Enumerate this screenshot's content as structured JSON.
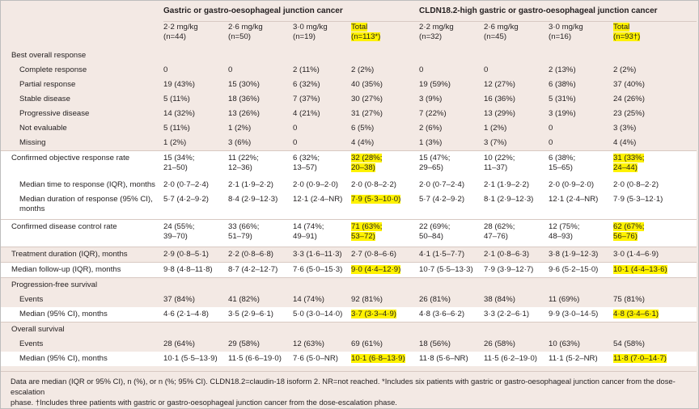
{
  "groups": {
    "g1": "Gastric or gastro-oesophageal junction cancer",
    "g2": "CLDN18.2-high gastric or gastro-oesophageal junction cancer"
  },
  "columns": [
    {
      "dose": "2·2 mg/kg",
      "n": "(n=44)"
    },
    {
      "dose": "2·6 mg/kg",
      "n": "(n=50)"
    },
    {
      "dose": "3·0 mg/kg",
      "n": "(n=19)"
    },
    {
      "dose": "Total",
      "n": "(n=113*)"
    },
    {
      "dose": "2·2 mg/kg",
      "n": "(n=32)"
    },
    {
      "dose": "2·6 mg/kg",
      "n": "(n=45)"
    },
    {
      "dose": "3·0 mg/kg",
      "n": "(n=16)"
    },
    {
      "dose": "Total",
      "n": "(n=93†)"
    }
  ],
  "rows": [
    {
      "label": "Best overall response",
      "kind": "group",
      "cells": []
    },
    {
      "label": "Complete response",
      "kind": "item",
      "cells": [
        "0",
        "0",
        "2 (11%)",
        "2 (2%)",
        "0",
        "0",
        "2 (13%)",
        "2 (2%)"
      ]
    },
    {
      "label": "Partial response",
      "kind": "item",
      "cells": [
        "19 (43%)",
        "15 (30%)",
        "6 (32%)",
        "40 (35%)",
        "19 (59%)",
        "12 (27%)",
        "6 (38%)",
        "37 (40%)"
      ]
    },
    {
      "label": "Stable disease",
      "kind": "item",
      "cells": [
        "5 (11%)",
        "18 (36%)",
        "7 (37%)",
        "30 (27%)",
        "3 (9%)",
        "16 (36%)",
        "5 (31%)",
        "24 (26%)"
      ]
    },
    {
      "label": "Progressive disease",
      "kind": "item",
      "cells": [
        "14 (32%)",
        "13 (26%)",
        "4 (21%)",
        "31 (27%)",
        "7 (22%)",
        "13 (29%)",
        "3 (19%)",
        "23 (25%)"
      ]
    },
    {
      "label": "Not evaluable",
      "kind": "item",
      "cells": [
        "5 (11%)",
        "1 (2%)",
        "0",
        "6 (5%)",
        "2 (6%)",
        "1 (2%)",
        "0",
        "3 (3%)"
      ]
    },
    {
      "label": "Missing",
      "kind": "item",
      "cells": [
        "1 (2%)",
        "3 (6%)",
        "0",
        "4 (4%)",
        "1 (3%)",
        "3 (7%)",
        "0",
        "4 (4%)"
      ]
    },
    {
      "label": "Confirmed objective response rate",
      "kind": "top",
      "cells": [
        "15 (34%;",
        "11 (22%;",
        "6 (32%;",
        "32 (28%;",
        "15 (47%;",
        "10 (22%;",
        "6 (38%;",
        "31 (33%;"
      ],
      "cells2": [
        "21–50)",
        "12–36)",
        "13–57)",
        "20–38)",
        "29–65)",
        "11–37)",
        "15–65)",
        "24–44)"
      ]
    },
    {
      "label": "Median time to response (IQR), months",
      "kind": "item",
      "cells": [
        "2·0 (0·7–2·4)",
        "2·1 (1·9–2·2)",
        "2·0 (0·9–2·0)",
        "2·0 (0·8–2·2)",
        "2·0 (0·7–2·4)",
        "2·1 (1·9–2·2)",
        "2·0 (0·9–2·0)",
        "2·0 (0·8–2·2)"
      ]
    },
    {
      "label": "Median duration of response (95% CI),",
      "label2": "months",
      "kind": "item2",
      "cells": [
        "5·7 (4·2–9·2)",
        "8·4 (2·9–12·3)",
        "12·1 (2·4–NR)",
        "7·9 (5·3–10·0)",
        "5·7 (4·2–9·2)",
        "8·1 (2·9–12·3)",
        "12·1 (2·4–NR)",
        "7·9 (5·3–12·1)"
      ]
    },
    {
      "label": "Confirmed disease control rate",
      "kind": "top",
      "cells": [
        "24 (55%;",
        "33 (66%;",
        "14 (74%;",
        "71 (63%;",
        "22 (69%;",
        "28 (62%;",
        "12 (75%;",
        "62 (67%;"
      ],
      "cells2": [
        "39–70)",
        "51–79)",
        "49–91)",
        "53–72)",
        "50–84)",
        "47–76)",
        "48–93)",
        "56–76)"
      ]
    },
    {
      "label": "Treatment duration (IQR), months",
      "kind": "top",
      "cells": [
        "2·9 (0·8–5·1)",
        "2·2 (0·8–6·8)",
        "3·3 (1·6–11·3)",
        "2·7 (0·8–6·6)",
        "4·1 (1·5–7·7)",
        "2·1 (0·8–6·3)",
        "3·8 (1·9–12·3)",
        "3·0 (1·4–6·9)"
      ]
    },
    {
      "label": "Median follow-up (IQR), months",
      "kind": "top",
      "cells": [
        "9·8 (4·8–11·8)",
        "8·7 (4·2–12·7)",
        "7·6 (5·0–15·3)",
        "9·0 (4·4–12·9)",
        "10·7 (5·5–13·3)",
        "7·9 (3·9–12·7)",
        "9·6 (5·2–15·0)",
        "10·1 (4·4–13·6)"
      ]
    },
    {
      "label": "Progression-free survival",
      "kind": "topgroup",
      "cells": []
    },
    {
      "label": "Events",
      "kind": "item",
      "cells": [
        "37 (84%)",
        "41 (82%)",
        "14 (74%)",
        "92 (81%)",
        "26 (81%)",
        "38 (84%)",
        "11 (69%)",
        "75 (81%)"
      ]
    },
    {
      "label": "Median (95% CI), months",
      "kind": "item",
      "cells": [
        "4·6 (2·1–4·8)",
        "3·5 (2·9–6·1)",
        "5·0 (3·0–14·0)",
        "3·7 (3·3–4·9)",
        "4·8 (3·6–6·2)",
        "3·3 (2·2–6·1)",
        "9·9 (3·0–14·5)",
        "4·8 (3·4–6·1)"
      ]
    },
    {
      "label": "Overall survival",
      "kind": "topgroup",
      "cells": []
    },
    {
      "label": "Events",
      "kind": "item",
      "cells": [
        "28 (64%)",
        "29 (58%)",
        "12 (63%)",
        "69 (61%)",
        "18 (56%)",
        "26 (58%)",
        "10 (63%)",
        "54 (58%)"
      ]
    },
    {
      "label": "Median (95% CI), months",
      "kind": "item",
      "cells": [
        "10·1 (5·5–13·9)",
        "11·5 (6·6–19·0)",
        "7·6 (5·0–NR)",
        "10·1 (6·8–13·9)",
        "11·8 (5·6–NR)",
        "11·5 (6·2–19·0)",
        "11·1 (5·2–NR)",
        "11·8 (7·0–14·7)"
      ]
    }
  ],
  "footnote_line1": "Data are median (IQR or 95% CI), n (%), or n (%; 95% CI). CLDN18.2=claudin-18 isoform 2. NR=not reached. *Includes six patients with gastric or gastro-oesophageal junction cancer from the dose-escalation",
  "footnote_line2": "phase. †Includes three patients with gastric or gastro-oesophageal junction cancer from the dose-escalation phase.",
  "highlight_color": "#fff200",
  "shade_color": "#f3e9e4",
  "white_color": "#ffffff"
}
